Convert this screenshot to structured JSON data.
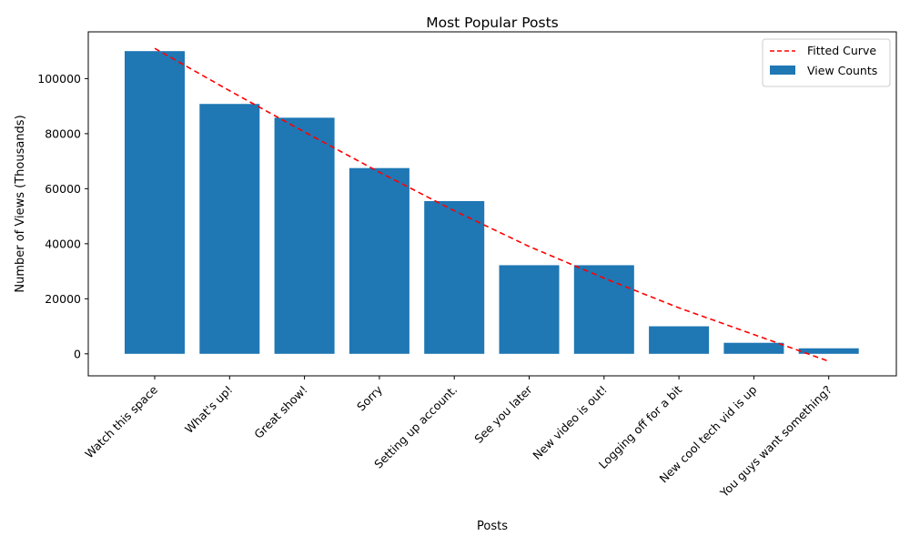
{
  "chart_data": {
    "type": "bar",
    "title": "Most Popular Posts",
    "xlabel": "Posts",
    "ylabel": "Number of Views (Thousands)",
    "categories": [
      "Watch this space",
      "What's up!",
      "Great show!",
      "Sorry",
      "Setting up account.",
      "See you later",
      "New video is out!",
      "Logging off for a bit",
      "New cool tech vid is up",
      "You guys want something?"
    ],
    "series": [
      {
        "name": "View Counts",
        "type": "bar",
        "color": "#1f77b4",
        "values": [
          110000,
          90800,
          85800,
          67500,
          55500,
          32200,
          32200,
          10000,
          4000,
          2000
        ]
      },
      {
        "name": "Fitted Curve",
        "type": "line",
        "style": "dashed",
        "color": "#ff0000",
        "values": [
          111000,
          95600,
          80600,
          66000,
          52000,
          39000,
          27500,
          16700,
          7000,
          -2700
        ]
      }
    ],
    "ylim": [
      -8000,
      117000
    ],
    "yticks": [
      0,
      20000,
      40000,
      60000,
      80000,
      100000
    ],
    "legend": "top-right",
    "grid": false
  }
}
